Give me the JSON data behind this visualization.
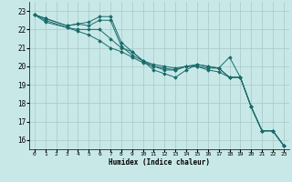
{
  "xlabel": "Humidex (Indice chaleur)",
  "bg_color": "#c8e8e8",
  "grid_color": "#a8c8c8",
  "line_color": "#1a6b6b",
  "xlim": [
    -0.5,
    23.5
  ],
  "ylim": [
    15.5,
    23.5
  ],
  "yticks": [
    16,
    17,
    18,
    19,
    20,
    21,
    22,
    23
  ],
  "xticks": [
    0,
    1,
    2,
    3,
    4,
    5,
    6,
    7,
    8,
    9,
    10,
    11,
    12,
    13,
    14,
    15,
    16,
    17,
    18,
    19,
    20,
    21,
    22,
    23
  ],
  "series": [
    {
      "x": [
        0,
        1,
        3,
        4,
        5,
        6,
        7,
        8,
        9,
        10,
        11,
        12,
        13,
        14,
        15,
        16,
        17,
        18,
        19,
        20,
        21,
        22,
        23
      ],
      "y": [
        22.8,
        22.6,
        22.2,
        22.3,
        22.4,
        22.7,
        22.7,
        21.3,
        20.8,
        20.3,
        19.8,
        19.6,
        19.4,
        19.8,
        20.1,
        20.0,
        19.9,
        20.5,
        19.4,
        17.8,
        16.5,
        16.5,
        15.7
      ]
    },
    {
      "x": [
        0,
        1,
        3,
        4,
        5,
        6,
        7,
        8,
        9,
        10,
        11,
        12,
        13,
        14,
        15,
        16,
        17,
        18,
        19,
        20,
        21,
        22,
        23
      ],
      "y": [
        22.8,
        22.6,
        22.2,
        22.3,
        22.2,
        22.5,
        22.5,
        21.1,
        20.6,
        20.3,
        20.0,
        19.8,
        19.8,
        20.0,
        20.0,
        19.9,
        19.9,
        19.4,
        19.4,
        17.8,
        16.5,
        16.5,
        15.7
      ]
    },
    {
      "x": [
        0,
        1,
        3,
        4,
        5,
        6,
        7,
        8,
        9,
        10,
        11,
        12,
        13,
        14,
        15,
        16,
        17,
        18,
        19,
        20,
        21,
        22,
        23
      ],
      "y": [
        22.8,
        22.5,
        22.1,
        22.0,
        22.0,
        22.0,
        21.5,
        21.0,
        20.8,
        20.3,
        20.1,
        20.0,
        19.9,
        20.0,
        20.1,
        20.0,
        19.9,
        19.4,
        19.4,
        17.8,
        16.5,
        16.5,
        15.7
      ]
    },
    {
      "x": [
        0,
        1,
        3,
        4,
        5,
        6,
        7,
        8,
        9,
        10,
        11,
        12,
        13,
        14,
        15,
        16,
        17,
        18,
        19,
        20,
        21,
        22,
        23
      ],
      "y": [
        22.8,
        22.4,
        22.1,
        21.9,
        21.7,
        21.4,
        21.0,
        20.8,
        20.5,
        20.2,
        20.0,
        19.9,
        19.8,
        20.0,
        20.0,
        19.8,
        19.7,
        19.4,
        19.4,
        17.8,
        16.5,
        16.5,
        15.7
      ]
    }
  ]
}
